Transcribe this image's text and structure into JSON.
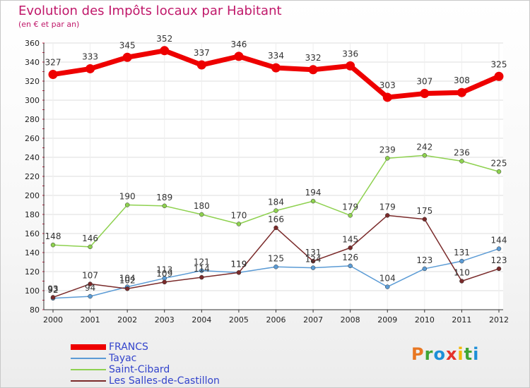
{
  "title": "Evolution des Impôts locaux par Habitant",
  "subtitle": "(en € et par an)",
  "logo_text": "Proxiti",
  "chart_data": {
    "type": "line",
    "x": [
      "2000",
      "2001",
      "2002",
      "2003",
      "2004",
      "2005",
      "2006",
      "2007",
      "2008",
      "2009",
      "2010",
      "2011",
      "2012"
    ],
    "ylim": [
      80,
      360
    ],
    "yticks": [
      80,
      100,
      120,
      140,
      160,
      180,
      200,
      220,
      240,
      260,
      280,
      300,
      320,
      340,
      360
    ],
    "grid": true,
    "series": [
      {
        "name": "FRANCS",
        "color": "#ee0000",
        "width": 7,
        "values": [
          327,
          333,
          345,
          352,
          337,
          346,
          334,
          332,
          336,
          303,
          307,
          308,
          325
        ]
      },
      {
        "name": "Tayac",
        "color": "#5b9bd5",
        "width": 1.5,
        "values": [
          92,
          94,
          104,
          113,
          121,
          119,
          125,
          124,
          126,
          104,
          123,
          131,
          144
        ]
      },
      {
        "name": "Saint-Cibard",
        "color": "#8ed14f",
        "width": 1.5,
        "values": [
          148,
          146,
          190,
          189,
          180,
          170,
          184,
          194,
          179,
          239,
          242,
          236,
          225
        ]
      },
      {
        "name": "Les Salles-de-Castillon",
        "color": "#7a2a2a",
        "width": 1.5,
        "values": [
          93,
          107,
          102,
          109,
          114,
          119,
          166,
          131,
          145,
          179,
          175,
          110,
          123
        ]
      }
    ]
  }
}
